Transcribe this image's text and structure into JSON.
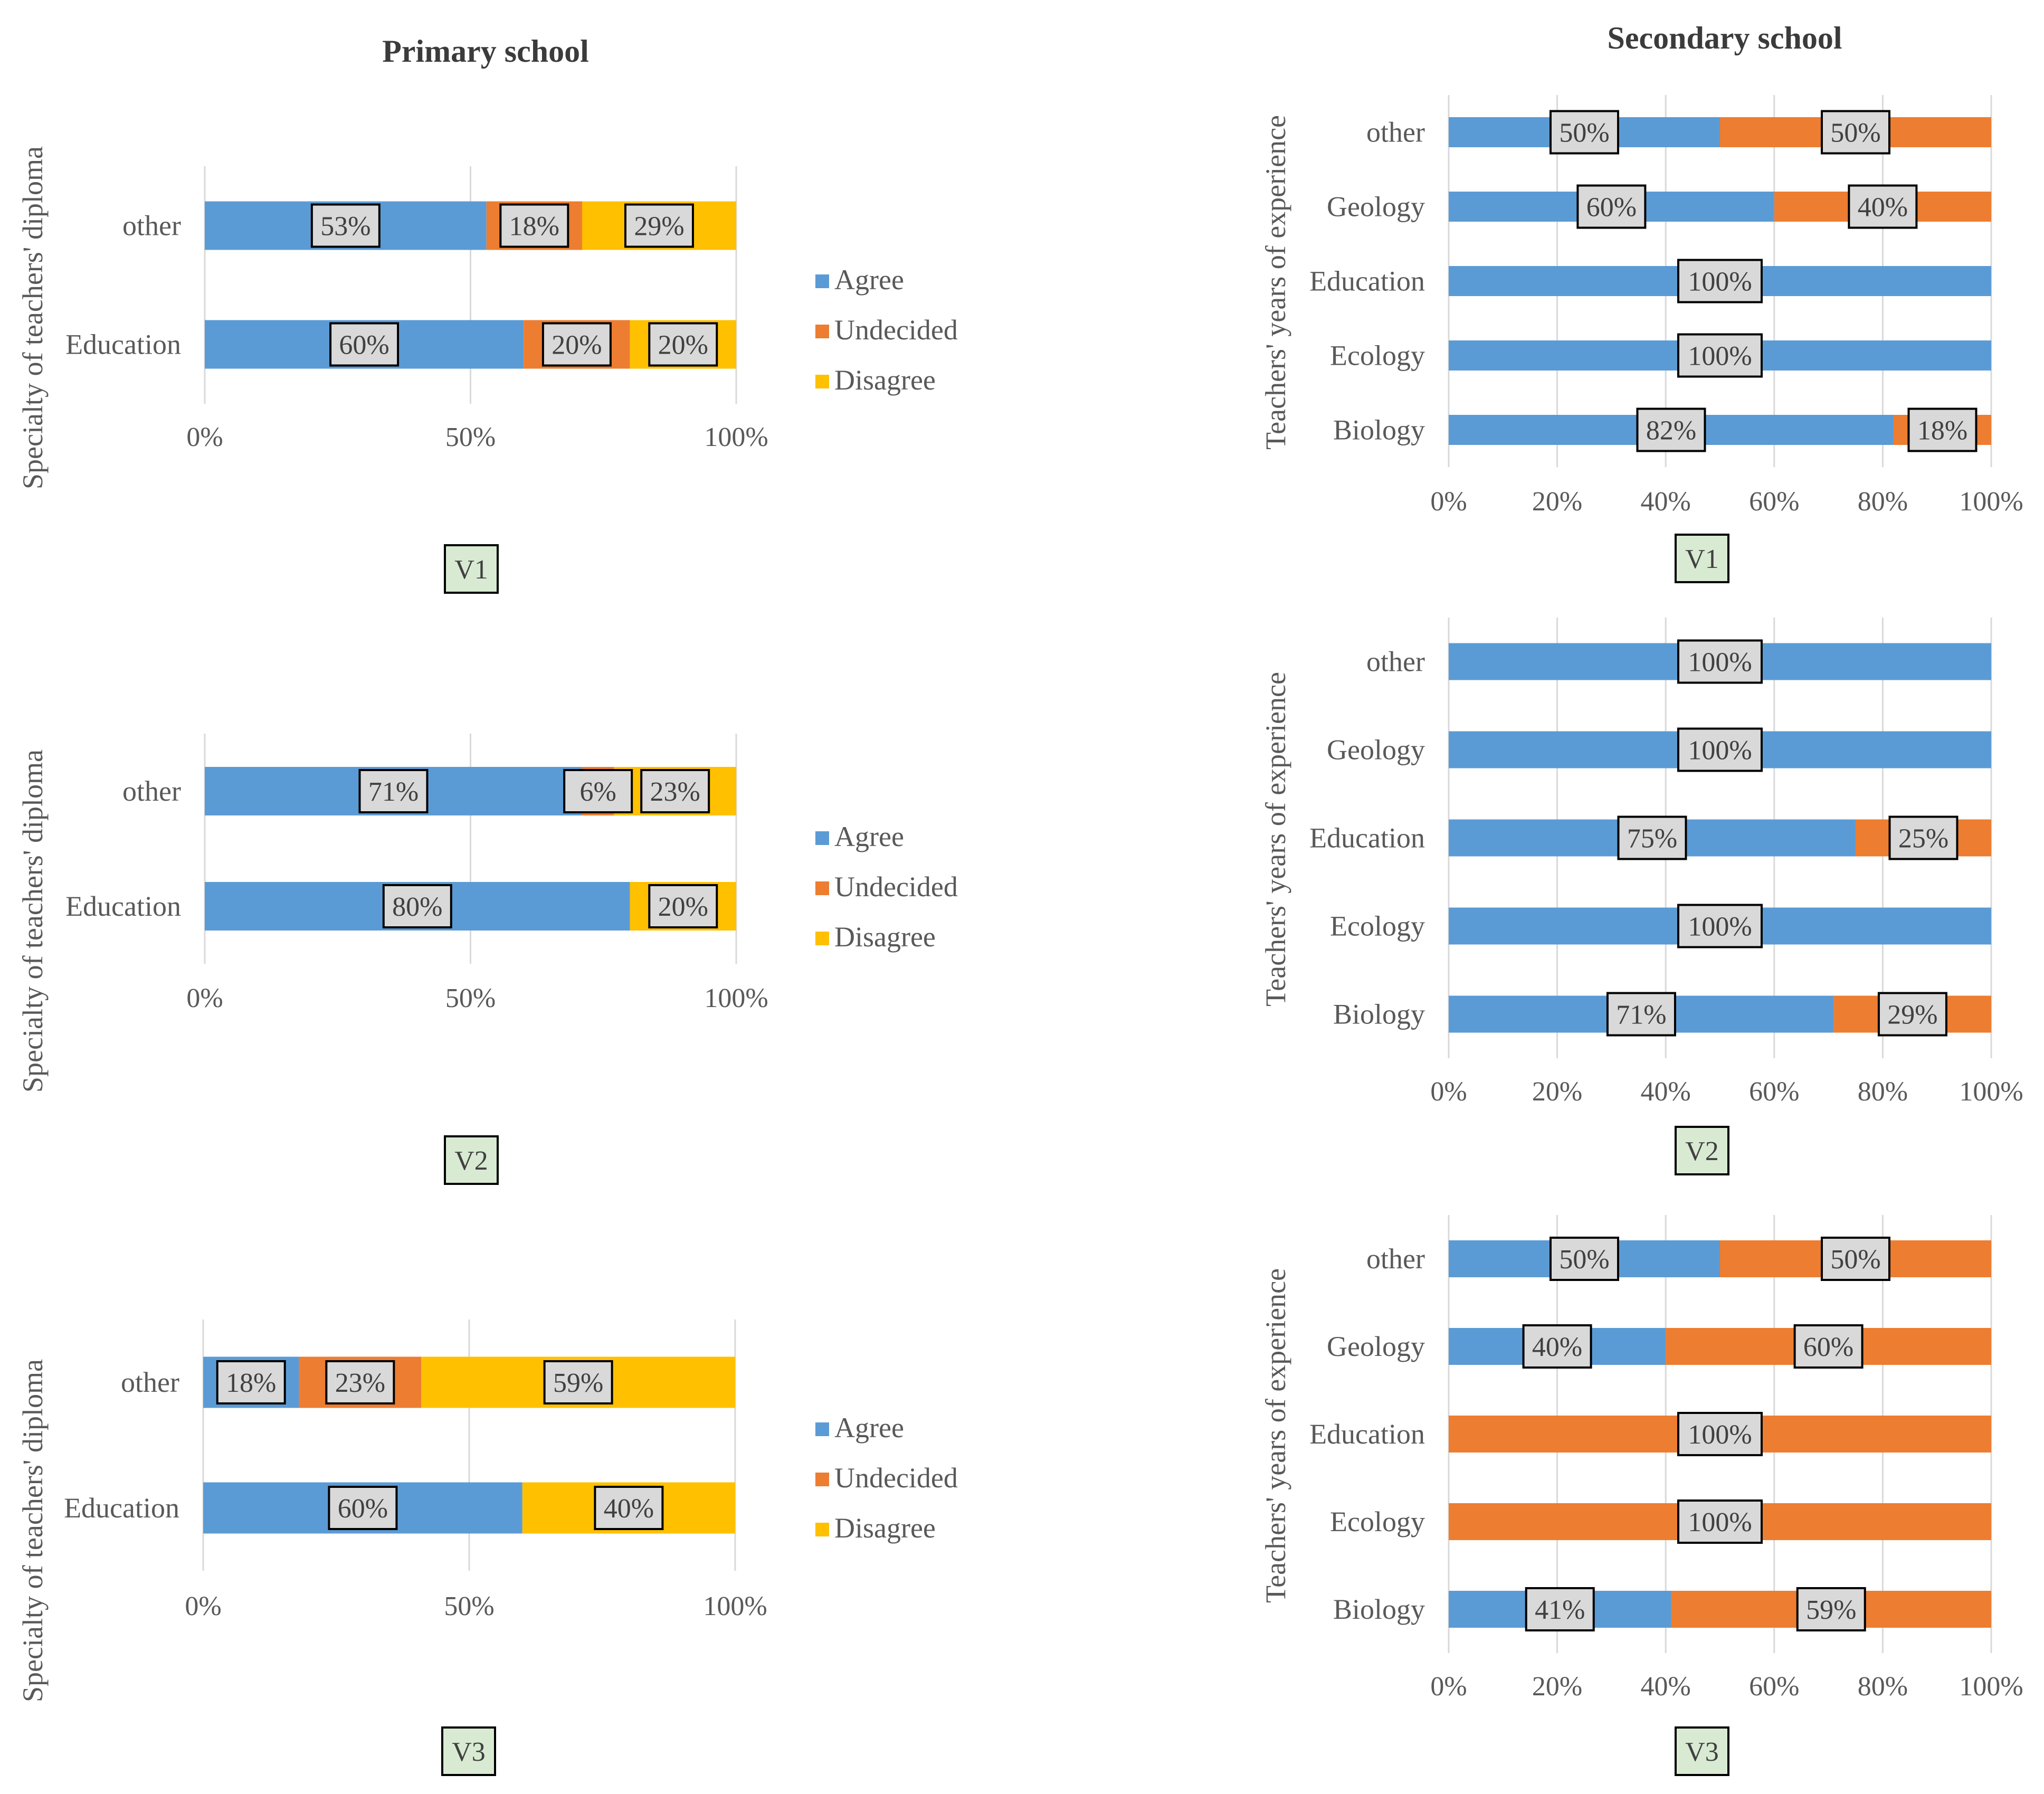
{
  "titles": {
    "primary": "Primary school",
    "secondary": "Secondary school"
  },
  "legend": [
    "Agree",
    "Undecided",
    "Disagree"
  ],
  "colors": {
    "Agree": "#5b9bd5",
    "Undecided": "#ed7d31",
    "Disagree": "#ffc000",
    "label_bg": "#d9d9d9",
    "version_bg": "#d9ead3",
    "grid": "#d9d9d9"
  },
  "chart_data": [
    {
      "id": "primary-v1",
      "type": "bar",
      "stacked": true,
      "orientation": "horizontal",
      "version": "V1",
      "ylabel": "Specialty of teachers' diploma",
      "categories": [
        "other",
        "Education"
      ],
      "x_ticks": [
        "0%",
        "50%",
        "100%"
      ],
      "xlim": [
        0,
        100
      ],
      "series": [
        {
          "name": "Agree",
          "values": [
            53,
            60
          ],
          "labels": [
            "53%",
            "60%"
          ]
        },
        {
          "name": "Undecided",
          "values": [
            18,
            20
          ],
          "labels": [
            "18%",
            "20%"
          ]
        },
        {
          "name": "Disagree",
          "values": [
            29,
            20
          ],
          "labels": [
            "29%",
            "20%"
          ]
        }
      ]
    },
    {
      "id": "primary-v2",
      "type": "bar",
      "stacked": true,
      "orientation": "horizontal",
      "version": "V2",
      "ylabel": "Specialty of teachers' diploma",
      "categories": [
        "other",
        "Education"
      ],
      "x_ticks": [
        "0%",
        "50%",
        "100%"
      ],
      "xlim": [
        0,
        100
      ],
      "series": [
        {
          "name": "Agree",
          "values": [
            71,
            80
          ],
          "labels": [
            "71%",
            "80%"
          ]
        },
        {
          "name": "Undecided",
          "values": [
            6,
            0
          ],
          "labels": [
            "6%",
            ""
          ]
        },
        {
          "name": "Disagree",
          "values": [
            23,
            20
          ],
          "labels": [
            "23%",
            "20%"
          ]
        }
      ]
    },
    {
      "id": "primary-v3",
      "type": "bar",
      "stacked": true,
      "orientation": "horizontal",
      "version": "V3",
      "ylabel": "Specialty of teachers' diploma",
      "categories": [
        "other",
        "Education"
      ],
      "x_ticks": [
        "0%",
        "50%",
        "100%"
      ],
      "xlim": [
        0,
        100
      ],
      "series": [
        {
          "name": "Agree",
          "values": [
            18,
            60
          ],
          "labels": [
            "18%",
            "60%"
          ]
        },
        {
          "name": "Undecided",
          "values": [
            23,
            0
          ],
          "labels": [
            "23%",
            ""
          ]
        },
        {
          "name": "Disagree",
          "values": [
            59,
            40
          ],
          "labels": [
            "59%",
            "40%"
          ]
        }
      ]
    },
    {
      "id": "secondary-v1",
      "type": "bar",
      "stacked": true,
      "orientation": "horizontal",
      "version": "V1",
      "ylabel": "Teachers' years of experience",
      "categories": [
        "other",
        "Geology",
        "Education",
        "Ecology",
        "Biology"
      ],
      "x_ticks": [
        "0%",
        "20%",
        "40%",
        "60%",
        "80%",
        "100%"
      ],
      "xlim": [
        0,
        100
      ],
      "series": [
        {
          "name": "Agree",
          "values": [
            50,
            60,
            100,
            100,
            82
          ],
          "labels": [
            "50%",
            "60%",
            "100%",
            "100%",
            "82%"
          ]
        },
        {
          "name": "Undecided",
          "values": [
            50,
            40,
            0,
            0,
            18
          ],
          "labels": [
            "50%",
            "40%",
            "",
            "",
            "18%"
          ]
        }
      ]
    },
    {
      "id": "secondary-v2",
      "type": "bar",
      "stacked": true,
      "orientation": "horizontal",
      "version": "V2",
      "ylabel": "Teachers' years of experience",
      "categories": [
        "other",
        "Geology",
        "Education",
        "Ecology",
        "Biology"
      ],
      "x_ticks": [
        "0%",
        "20%",
        "40%",
        "60%",
        "80%",
        "100%"
      ],
      "xlim": [
        0,
        100
      ],
      "series": [
        {
          "name": "Agree",
          "values": [
            100,
            100,
            75,
            100,
            71
          ],
          "labels": [
            "100%",
            "100%",
            "75%",
            "100%",
            "71%"
          ]
        },
        {
          "name": "Undecided",
          "values": [
            0,
            0,
            25,
            0,
            29
          ],
          "labels": [
            "",
            "",
            "25%",
            "",
            "29%"
          ]
        }
      ]
    },
    {
      "id": "secondary-v3",
      "type": "bar",
      "stacked": true,
      "orientation": "horizontal",
      "version": "V3",
      "ylabel": "Teachers' years of experience",
      "categories": [
        "other",
        "Geology",
        "Education",
        "Ecology",
        "Biology"
      ],
      "x_ticks": [
        "0%",
        "20%",
        "40%",
        "60%",
        "80%",
        "100%"
      ],
      "xlim": [
        0,
        100
      ],
      "series": [
        {
          "name": "Agree",
          "values": [
            50,
            40,
            0,
            0,
            41
          ],
          "labels": [
            "50%",
            "40%",
            "",
            "",
            "41%"
          ]
        },
        {
          "name": "Undecided",
          "values": [
            50,
            60,
            100,
            100,
            59
          ],
          "labels": [
            "50%",
            "60%",
            "100%",
            "100%",
            "59%"
          ]
        }
      ]
    }
  ]
}
